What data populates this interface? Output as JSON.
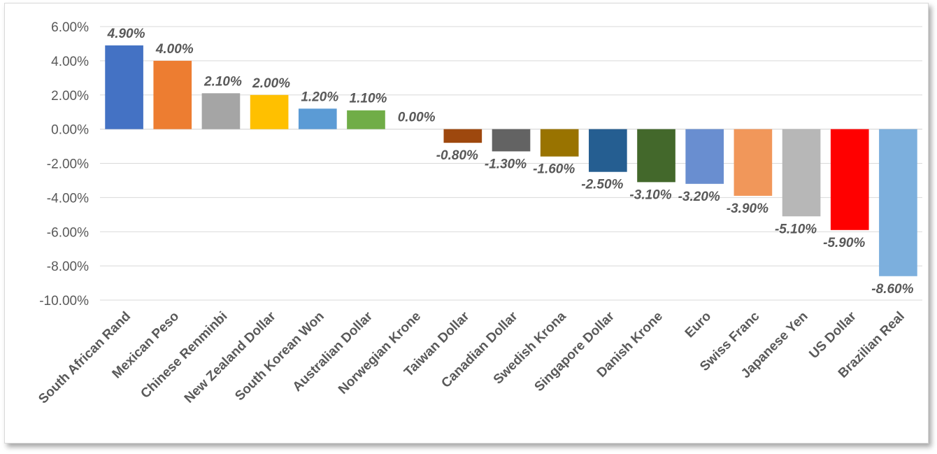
{
  "chart_data": {
    "type": "bar",
    "title": "",
    "xlabel": "",
    "ylabel": "",
    "ylim": [
      -10,
      6
    ],
    "y_ticks": [
      6,
      4,
      2,
      0,
      -2,
      -4,
      -6,
      -8,
      -10
    ],
    "y_tick_labels": [
      "6.00%",
      "4.00%",
      "2.00%",
      "0.00%",
      "-2.00%",
      "-4.00%",
      "-6.00%",
      "-8.00%",
      "-10.00%"
    ],
    "grid": true,
    "legend": "none",
    "categories": [
      "South African Rand",
      "Mexican Peso",
      "Chinese Renminbi",
      "New Zealand Dollar",
      "South Korean Won",
      "Australian Dollar",
      "Norwegian Krone",
      "Taiwan Dollar",
      "Canadian Dollar",
      "Swedish Krona",
      "Singapore Dollar",
      "Danish Krone",
      "Euro",
      "Swiss Franc",
      "Japanese Yen",
      "US Dollar",
      "Brazilian Real"
    ],
    "values": [
      4.9,
      4.0,
      2.1,
      2.0,
      1.2,
      1.1,
      0.0,
      -0.8,
      -1.3,
      -1.6,
      -2.5,
      -3.1,
      -3.2,
      -3.9,
      -5.1,
      -5.9,
      -8.6
    ],
    "data_labels": [
      "4.90%",
      "4.00%",
      "2.10%",
      "2.00%",
      "1.20%",
      "1.10%",
      "0.00%",
      "-0.80%",
      "-1.30%",
      "-1.60%",
      "-2.50%",
      "-3.10%",
      "-3.20%",
      "-3.90%",
      "-5.10%",
      "-5.90%",
      "-8.60%"
    ],
    "colors": [
      "#4472C4",
      "#ED7D31",
      "#A5A5A5",
      "#FFC000",
      "#5B9BD5",
      "#70AD47",
      "#C0C0C0",
      "#9E480E",
      "#636363",
      "#997300",
      "#255E91",
      "#43682B",
      "#698ED0",
      "#F1975A",
      "#B7B7B7",
      "#FF0000",
      "#7CAFDD"
    ]
  }
}
